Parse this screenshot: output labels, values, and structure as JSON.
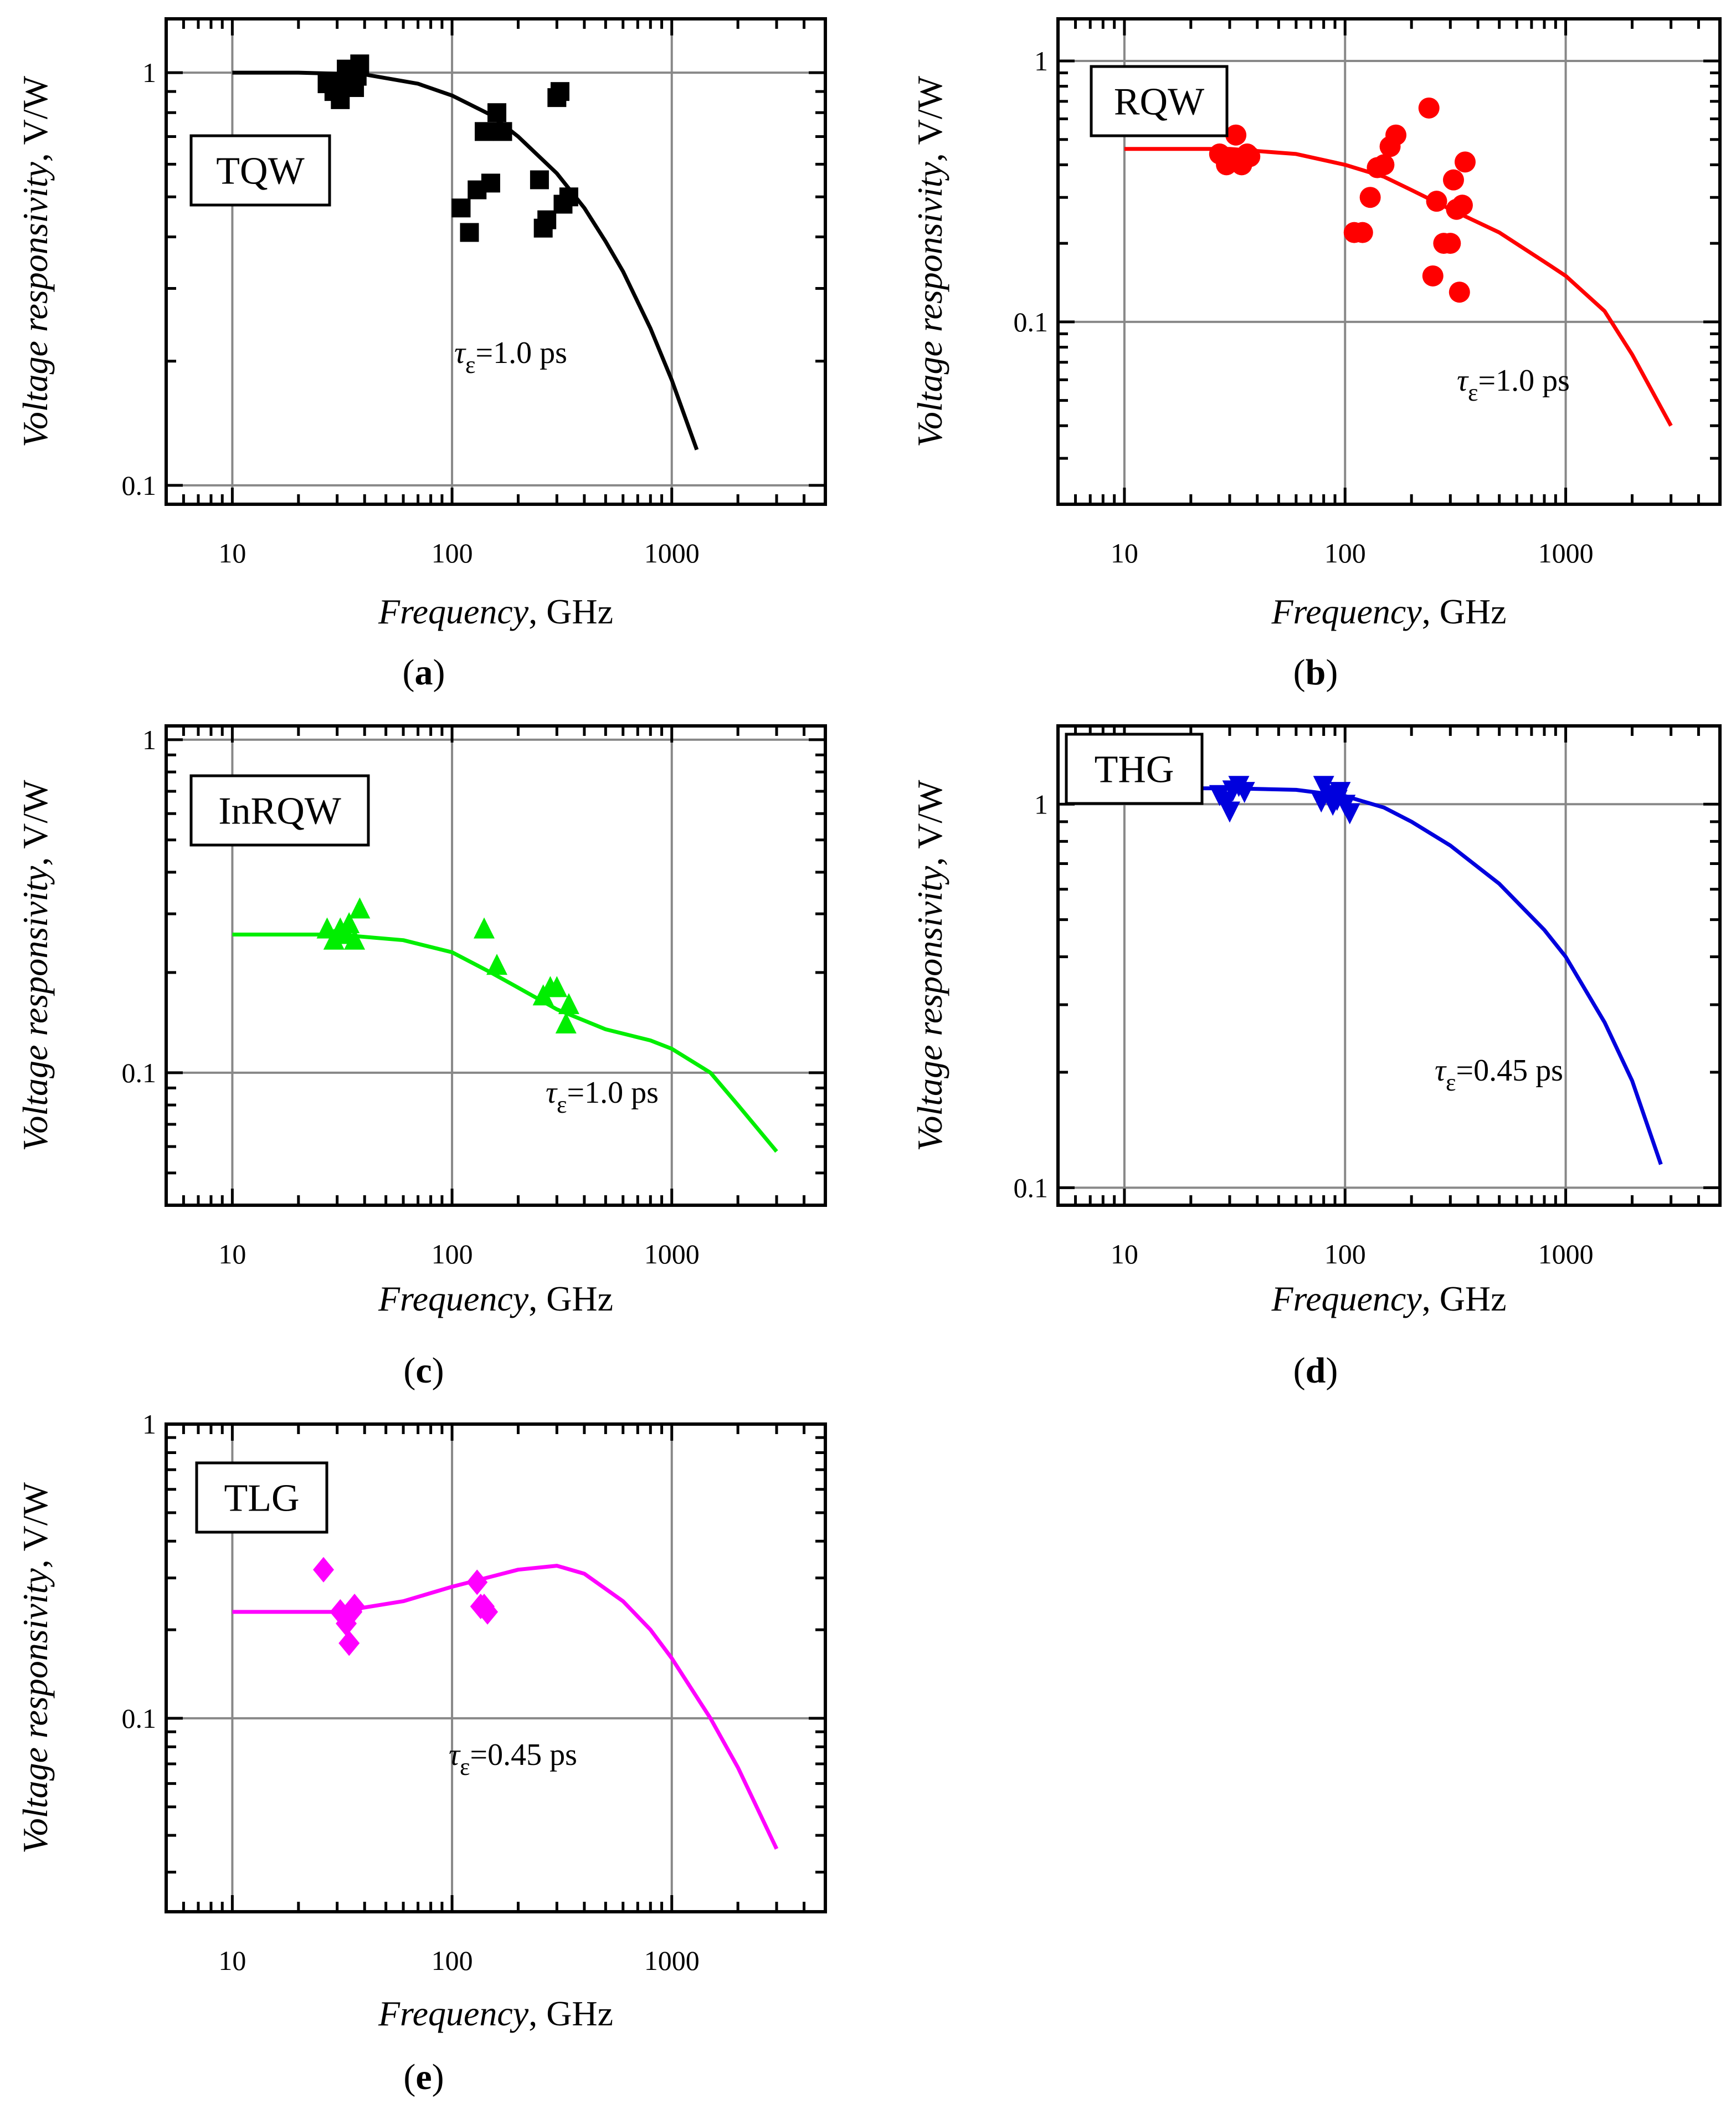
{
  "chart_data": [
    {
      "id": "a",
      "type": "scatter",
      "panel_label": "(a)",
      "legend": "TQW",
      "annotation": "τε=1.0 ps",
      "annotation_prefix": "τ",
      "annotation_sub": "ε",
      "annotation_suffix": "=1.0 ps",
      "xlabel_italic": "Frequency",
      "xlabel_rest": ", GHz",
      "ylabel_italic": "Voltage responsivity",
      "ylabel_rest": ", V/W",
      "xscale": "log",
      "yscale": "log",
      "xlim": [
        5,
        5000
      ],
      "ylim": [
        0.09,
        1.35
      ],
      "xticks": [
        {
          "v": 10,
          "label": "10"
        },
        {
          "v": 100,
          "label": "100"
        },
        {
          "v": 1000,
          "label": "1000"
        }
      ],
      "yticks": [
        {
          "v": 0.1,
          "label": "0.1"
        },
        {
          "v": 1,
          "label": "1"
        }
      ],
      "color": "#000000",
      "marker": "square",
      "points": [
        [
          27,
          0.94
        ],
        [
          29,
          0.9
        ],
        [
          31,
          0.86
        ],
        [
          32,
          0.95
        ],
        [
          33,
          1.02
        ],
        [
          36,
          0.92
        ],
        [
          37,
          0.98
        ],
        [
          38,
          1.05
        ],
        [
          110,
          0.47
        ],
        [
          120,
          0.41
        ],
        [
          130,
          0.52
        ],
        [
          140,
          0.72
        ],
        [
          150,
          0.54
        ],
        [
          160,
          0.8
        ],
        [
          170,
          0.72
        ],
        [
          250,
          0.55
        ],
        [
          260,
          0.42
        ],
        [
          270,
          0.44
        ],
        [
          300,
          0.87
        ],
        [
          310,
          0.9
        ],
        [
          320,
          0.48
        ],
        [
          340,
          0.5
        ]
      ],
      "curve": [
        [
          10,
          1.0
        ],
        [
          20,
          1.0
        ],
        [
          40,
          0.99
        ],
        [
          70,
          0.94
        ],
        [
          100,
          0.88
        ],
        [
          150,
          0.79
        ],
        [
          200,
          0.7
        ],
        [
          300,
          0.57
        ],
        [
          400,
          0.47
        ],
        [
          500,
          0.39
        ],
        [
          600,
          0.33
        ],
        [
          800,
          0.24
        ],
        [
          1000,
          0.18
        ],
        [
          1300,
          0.122
        ]
      ]
    },
    {
      "id": "b",
      "type": "scatter",
      "panel_label": "(b)",
      "legend": "RQW",
      "annotation": "τε=1.0 ps",
      "annotation_prefix": "τ",
      "annotation_sub": "ε",
      "annotation_suffix": "=1.0 ps",
      "xlabel_italic": "Frequency",
      "xlabel_rest": ", GHz",
      "ylabel_italic": "Voltage responsivity",
      "ylabel_rest": ", V/W",
      "xscale": "log",
      "yscale": "log",
      "xlim": [
        5,
        5000
      ],
      "ylim": [
        0.02,
        1.45
      ],
      "xticks": [
        {
          "v": 10,
          "label": "10"
        },
        {
          "v": 100,
          "label": "100"
        },
        {
          "v": 1000,
          "label": "1000"
        }
      ],
      "yticks": [
        {
          "v": 0.1,
          "label": "0.1"
        },
        {
          "v": 1,
          "label": "1"
        }
      ],
      "color": "#ff0000",
      "marker": "circle",
      "points": [
        [
          27,
          0.44
        ],
        [
          29,
          0.4
        ],
        [
          31,
          0.42
        ],
        [
          32,
          0.52
        ],
        [
          34,
          0.4
        ],
        [
          36,
          0.44
        ],
        [
          37,
          0.43
        ],
        [
          110,
          0.22
        ],
        [
          120,
          0.22
        ],
        [
          130,
          0.3
        ],
        [
          140,
          0.39
        ],
        [
          150,
          0.4
        ],
        [
          160,
          0.47
        ],
        [
          170,
          0.52
        ],
        [
          240,
          0.66
        ],
        [
          250,
          0.15
        ],
        [
          260,
          0.29
        ],
        [
          280,
          0.2
        ],
        [
          300,
          0.2
        ],
        [
          310,
          0.35
        ],
        [
          320,
          0.27
        ],
        [
          330,
          0.13
        ],
        [
          340,
          0.28
        ],
        [
          350,
          0.41
        ]
      ],
      "curve": [
        [
          10,
          0.46
        ],
        [
          30,
          0.46
        ],
        [
          60,
          0.44
        ],
        [
          100,
          0.4
        ],
        [
          150,
          0.36
        ],
        [
          200,
          0.32
        ],
        [
          300,
          0.27
        ],
        [
          500,
          0.22
        ],
        [
          800,
          0.17
        ],
        [
          1000,
          0.15
        ],
        [
          1500,
          0.11
        ],
        [
          2000,
          0.075
        ],
        [
          3000,
          0.04
        ]
      ]
    },
    {
      "id": "c",
      "type": "scatter",
      "panel_label": "(c)",
      "legend": "InRQW",
      "annotation": "τε=1.0 ps",
      "annotation_prefix": "τ",
      "annotation_sub": "ε",
      "annotation_suffix": "=1.0 ps",
      "xlabel_italic": "Frequency",
      "xlabel_rest": ", GHz",
      "ylabel_italic": "Voltage responsivity",
      "ylabel_rest": ", V/W",
      "xscale": "log",
      "yscale": "log",
      "xlim": [
        5,
        5000
      ],
      "ylim": [
        0.04,
        1.1
      ],
      "xticks": [
        {
          "v": 10,
          "label": "10"
        },
        {
          "v": 100,
          "label": "100"
        },
        {
          "v": 1000,
          "label": "1000"
        }
      ],
      "yticks": [
        {
          "v": 0.1,
          "label": "0.1"
        },
        {
          "v": 1,
          "label": "1"
        }
      ],
      "color": "#00ee00",
      "marker": "triangle-up",
      "points": [
        [
          27,
          0.27
        ],
        [
          29,
          0.25
        ],
        [
          31,
          0.27
        ],
        [
          33,
          0.26
        ],
        [
          34,
          0.28
        ],
        [
          36,
          0.25
        ],
        [
          38,
          0.31
        ],
        [
          140,
          0.27
        ],
        [
          160,
          0.21
        ],
        [
          260,
          0.17
        ],
        [
          280,
          0.18
        ],
        [
          300,
          0.18
        ],
        [
          330,
          0.14
        ],
        [
          340,
          0.16
        ]
      ],
      "curve": [
        [
          10,
          0.26
        ],
        [
          30,
          0.26
        ],
        [
          60,
          0.25
        ],
        [
          100,
          0.23
        ],
        [
          150,
          0.2
        ],
        [
          200,
          0.18
        ],
        [
          300,
          0.155
        ],
        [
          500,
          0.135
        ],
        [
          800,
          0.125
        ],
        [
          1000,
          0.118
        ],
        [
          1500,
          0.1
        ],
        [
          2000,
          0.08
        ],
        [
          3000,
          0.058
        ]
      ]
    },
    {
      "id": "d",
      "type": "scatter",
      "panel_label": "(d)",
      "legend": "THG",
      "annotation": "τε=0.45 ps",
      "annotation_prefix": "τ",
      "annotation_sub": "ε",
      "annotation_suffix": "=0.45 ps",
      "xlabel_italic": "Frequency",
      "xlabel_rest": ", GHz",
      "ylabel_italic": "Voltage responsivity",
      "ylabel_rest": ", V/W",
      "xscale": "log",
      "yscale": "log",
      "xlim": [
        5,
        5000
      ],
      "ylim": [
        0.09,
        1.6
      ],
      "xticks": [
        {
          "v": 10,
          "label": "10"
        },
        {
          "v": 100,
          "label": "100"
        },
        {
          "v": 1000,
          "label": "1000"
        }
      ],
      "yticks": [
        {
          "v": 0.1,
          "label": "0.1"
        },
        {
          "v": 1,
          "label": "1"
        }
      ],
      "color": "#0000dd",
      "marker": "triangle-down",
      "points": [
        [
          27,
          1.06
        ],
        [
          29,
          1.02
        ],
        [
          30,
          0.96
        ],
        [
          31,
          1.09
        ],
        [
          33,
          1.12
        ],
        [
          35,
          1.08
        ],
        [
          78,
          1.02
        ],
        [
          80,
          1.12
        ],
        [
          85,
          1.06
        ],
        [
          88,
          1.0
        ],
        [
          92,
          1.03
        ],
        [
          95,
          1.08
        ],
        [
          100,
          1.0
        ],
        [
          105,
          0.95
        ]
      ],
      "curve": [
        [
          10,
          1.1
        ],
        [
          30,
          1.1
        ],
        [
          60,
          1.09
        ],
        [
          100,
          1.05
        ],
        [
          150,
          0.98
        ],
        [
          200,
          0.9
        ],
        [
          300,
          0.78
        ],
        [
          500,
          0.62
        ],
        [
          800,
          0.47
        ],
        [
          1000,
          0.4
        ],
        [
          1500,
          0.27
        ],
        [
          2000,
          0.19
        ],
        [
          2700,
          0.115
        ]
      ]
    },
    {
      "id": "e",
      "type": "scatter",
      "panel_label": "(e)",
      "legend": "TLG",
      "annotation": "τε=0.45 ps",
      "annotation_prefix": "τ",
      "annotation_sub": "ε",
      "annotation_suffix": "=0.45 ps",
      "xlabel_italic": "Frequency",
      "xlabel_rest": ", GHz",
      "ylabel_italic": "Voltage responsivity",
      "ylabel_rest": ", V/W",
      "xscale": "log",
      "yscale": "log",
      "xlim": [
        5,
        5000
      ],
      "ylim": [
        0.022,
        1.0
      ],
      "xticks": [
        {
          "v": 10,
          "label": "10"
        },
        {
          "v": 100,
          "label": "100"
        },
        {
          "v": 1000,
          "label": "1000"
        }
      ],
      "yticks": [
        {
          "v": 0.1,
          "label": "0.1"
        },
        {
          "v": 1,
          "label": "1"
        }
      ],
      "color": "#ff00ff",
      "marker": "diamond",
      "points": [
        [
          26,
          0.32
        ],
        [
          31,
          0.23
        ],
        [
          33,
          0.21
        ],
        [
          34,
          0.18
        ],
        [
          35,
          0.23
        ],
        [
          36,
          0.24
        ],
        [
          130,
          0.29
        ],
        [
          135,
          0.24
        ],
        [
          140,
          0.24
        ],
        [
          145,
          0.23
        ]
      ],
      "curve": [
        [
          10,
          0.23
        ],
        [
          30,
          0.23
        ],
        [
          60,
          0.25
        ],
        [
          100,
          0.28
        ],
        [
          200,
          0.32
        ],
        [
          300,
          0.33
        ],
        [
          400,
          0.31
        ],
        [
          600,
          0.25
        ],
        [
          800,
          0.2
        ],
        [
          1000,
          0.16
        ],
        [
          1500,
          0.1
        ],
        [
          2000,
          0.068
        ],
        [
          3000,
          0.036
        ]
      ]
    }
  ]
}
